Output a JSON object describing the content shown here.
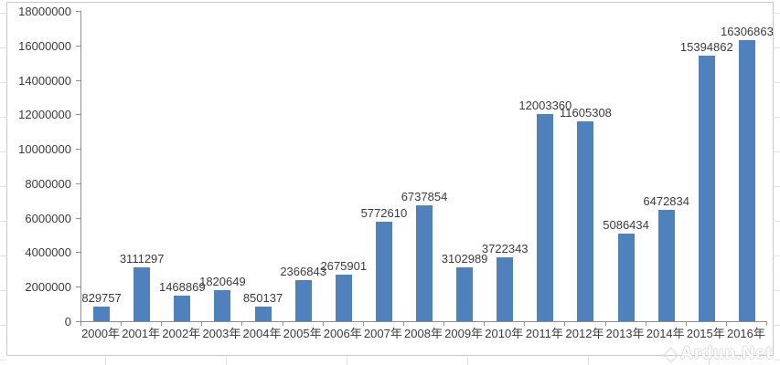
{
  "watermark": {
    "text": "Ardun.Net",
    "logo_icon": "diamond-logo"
  },
  "colors": {
    "bar": "#4F81BD",
    "axis_line": "#8e8e8e",
    "label_text": "#3b3b3b",
    "chart_frame_border": "#c8c8c8",
    "worksheet_gridline": "#d9e1ea"
  },
  "chart_data": {
    "type": "bar",
    "title": "",
    "xlabel": "",
    "ylabel": "",
    "legend": "none",
    "grid": false,
    "data_labels": true,
    "categories": [
      "2000年",
      "2001年",
      "2002年",
      "2003年",
      "2004年",
      "2005年",
      "2006年",
      "2007年",
      "2008年",
      "2009年",
      "2010年",
      "2011年",
      "2012年",
      "2013年",
      "2014年",
      "2015年",
      "2016年"
    ],
    "values": [
      829757,
      3111297,
      1468869,
      1820649,
      850137,
      2366843,
      2675901,
      5772610,
      6737854,
      3102989,
      3722343,
      12003360,
      11605308,
      5086434,
      6472834,
      15394862,
      16306863
    ],
    "ylim": [
      0,
      18000000
    ],
    "ytick_step": 2000000,
    "yticks": [
      0,
      2000000,
      4000000,
      6000000,
      8000000,
      10000000,
      12000000,
      14000000,
      16000000,
      18000000
    ],
    "bar_color": "#4F81BD"
  }
}
